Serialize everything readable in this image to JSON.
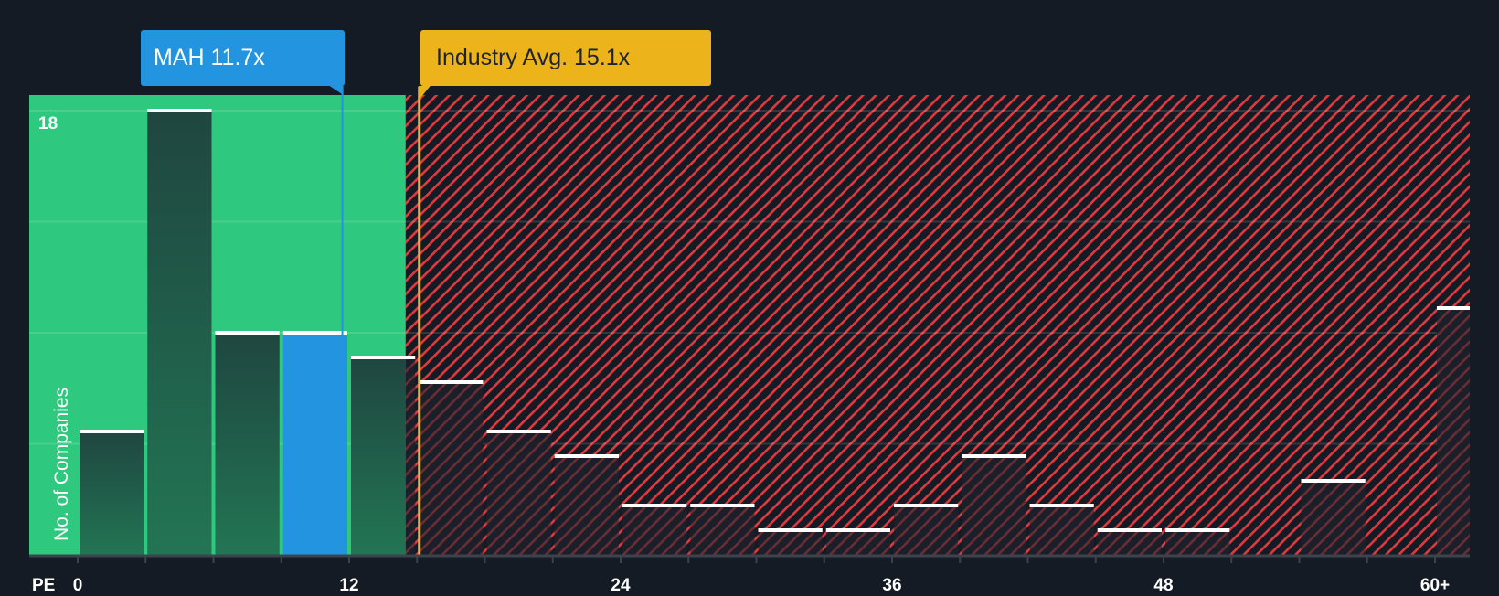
{
  "chart_data": {
    "type": "bar",
    "title": "",
    "xlabel": "PE",
    "ylabel": "No. of Companies",
    "x_ticks": [
      "0",
      "12",
      "24",
      "36",
      "48",
      "60+"
    ],
    "y_tick_labels": [
      "18"
    ],
    "ylim": [
      0,
      18
    ],
    "grid": true,
    "bin_width": 3,
    "categories": [
      "0-3",
      "3-6",
      "6-9",
      "9-12",
      "12-15",
      "15-18",
      "18-21",
      "21-24",
      "24-27",
      "27-30",
      "30-33",
      "33-36",
      "36-39",
      "39-42",
      "42-45",
      "45-48",
      "48-51",
      "51-54",
      "54-57",
      "57-60",
      "60+"
    ],
    "values": [
      5,
      18,
      9,
      9,
      8,
      7,
      5,
      4,
      2,
      2,
      1,
      1,
      2,
      4,
      2,
      1,
      1,
      0,
      3,
      0,
      10
    ],
    "highlight_bin": "9-12",
    "annotations": [
      {
        "label": "MAH 11.7x",
        "value": 11.7,
        "color": "#2394e0"
      },
      {
        "label": "Industry Avg. 15.1x",
        "value": 15.1,
        "color": "#ecb31a"
      }
    ],
    "regions": [
      {
        "name": "undervalued",
        "from": 0,
        "to": 14.5,
        "color": "#2ec97e"
      },
      {
        "name": "overvalued",
        "from": 14.5,
        "to": 62,
        "color": "#e0393e",
        "pattern": "diagonal-hatch"
      }
    ]
  },
  "callouts": {
    "company": "MAH 11.7x",
    "industry": "Industry Avg. 15.1x"
  },
  "axis": {
    "x_title": "PE",
    "y_title": "No. of Companies",
    "y_max_label": "18",
    "x_labels": [
      {
        "text": "0",
        "value": 0
      },
      {
        "text": "12",
        "value": 12
      },
      {
        "text": "24",
        "value": 24
      },
      {
        "text": "36",
        "value": 36
      },
      {
        "text": "48",
        "value": 48
      },
      {
        "text": "60+",
        "value": 60
      }
    ]
  },
  "colors": {
    "background": "#151b24",
    "green": "#2ec97e",
    "blue": "#2394e0",
    "gold": "#ecb31a",
    "red_hatch": "#e0393e"
  }
}
